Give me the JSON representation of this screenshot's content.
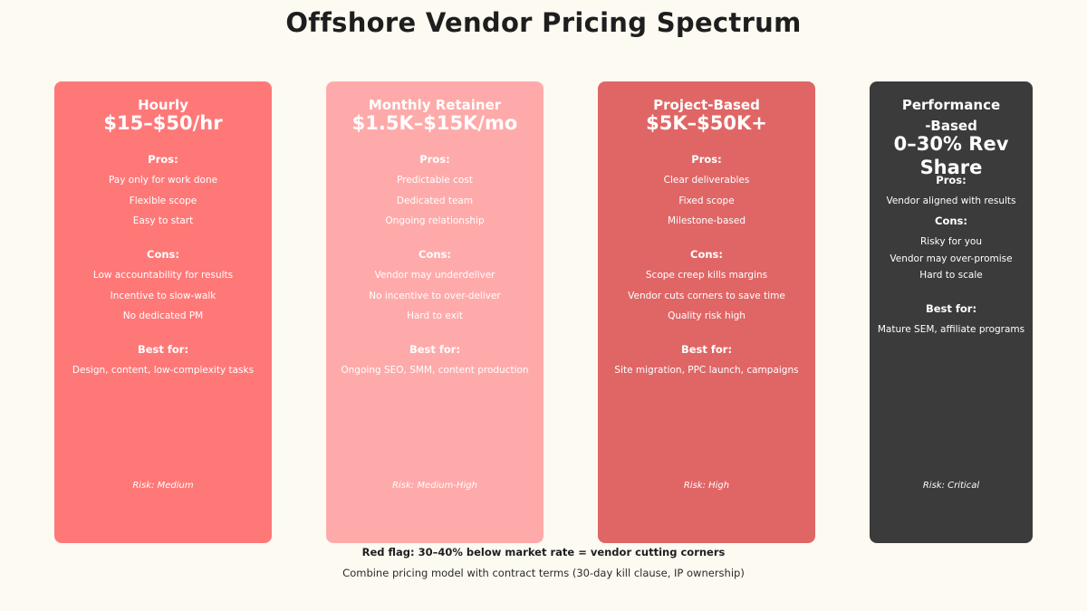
{
  "title": "Offshore Vendor Pricing Spectrum",
  "section_labels": {
    "pros": "Pros:",
    "cons": "Cons:",
    "best": "Best for:"
  },
  "cards": [
    {
      "name": "Hourly",
      "price": "$15–$50/hr",
      "color": "#ff7878",
      "pros": [
        "Pay only for work done",
        "Flexible scope",
        "Easy to start"
      ],
      "cons": [
        "Low accountability for results",
        "Incentive to slow-walk",
        "No dedicated PM"
      ],
      "best": "Design, content, low-complexity tasks",
      "risk": "Risk: Medium"
    },
    {
      "name": "Monthly Retainer",
      "price": "$1.5K–$15K/mo",
      "color": "#ffaaaa",
      "pros": [
        "Predictable cost",
        "Dedicated team",
        "Ongoing relationship"
      ],
      "cons": [
        "Vendor may underdeliver",
        "No incentive to over-deliver",
        "Hard to exit"
      ],
      "best": "Ongoing SEO, SMM, content production",
      "risk": "Risk: Medium-High"
    },
    {
      "name": "Project-Based",
      "price": "$5K–$50K+",
      "color": "#e06666",
      "pros": [
        "Clear deliverables",
        "Fixed scope",
        "Milestone-based"
      ],
      "cons": [
        "Scope creep kills margins",
        "Vendor cuts corners to save time",
        "Quality risk high"
      ],
      "best": "Site migration, PPC launch, campaigns",
      "risk": "Risk: High"
    },
    {
      "name_line1": "Performance",
      "name_line2": "-Based",
      "price": "0–30% Rev Share",
      "color": "#3b3b3b",
      "pros": [
        "Vendor aligned with results"
      ],
      "cons": [
        "Risky for you",
        "Vendor may over-promise",
        "Hard to scale"
      ],
      "best": "Mature SEM, affiliate programs",
      "risk": "Risk: Critical"
    }
  ],
  "footer": {
    "red_flag": "Red flag: 30–40% below market rate = vendor cutting corners",
    "note": "Combine pricing model with contract terms (30-day kill clause, IP ownership)"
  }
}
